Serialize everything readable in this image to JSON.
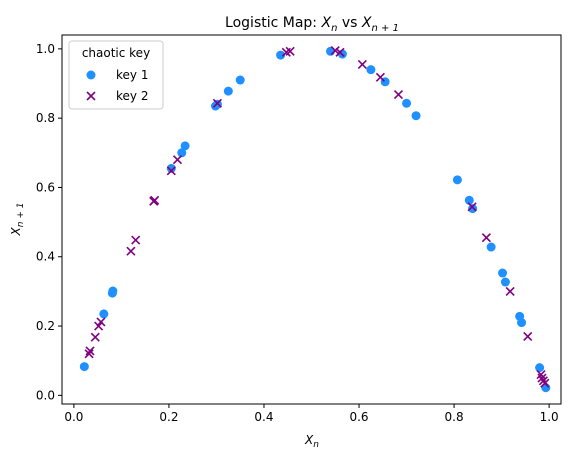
{
  "chart_data": {
    "type": "scatter",
    "title_main": "Logistic Map: ",
    "title_xn": "X",
    "title_xn_sub": "n",
    "title_vs": " vs ",
    "title_xn1": "X",
    "title_xn1_sub": "n + 1",
    "xlabel_base": "X",
    "xlabel_sub": "n",
    "ylabel_base": "X",
    "ylabel_sub": "n + 1",
    "xlim": [
      -0.025,
      1.025
    ],
    "ylim": [
      -0.025,
      1.04
    ],
    "x_ticks": [
      0.0,
      0.2,
      0.4,
      0.6,
      0.8,
      1.0
    ],
    "x_tick_labels": [
      "0.0",
      "0.2",
      "0.4",
      "0.6",
      "0.8",
      "1.0"
    ],
    "y_ticks": [
      0.0,
      0.2,
      0.4,
      0.6,
      0.8,
      1.0
    ],
    "y_tick_labels": [
      "0.0",
      "0.2",
      "0.4",
      "0.6",
      "0.8",
      "1.0"
    ],
    "grid": false,
    "legend": {
      "title": "chaotic key",
      "placement": "top-left"
    },
    "series": [
      {
        "name": "key 1",
        "marker": "circle",
        "color": "#1e90ff",
        "points": [
          [
            0.022,
            0.083
          ],
          [
            0.063,
            0.235
          ],
          [
            0.081,
            0.295
          ],
          [
            0.082,
            0.301
          ],
          [
            0.205,
            0.655
          ],
          [
            0.227,
            0.7
          ],
          [
            0.234,
            0.72
          ],
          [
            0.298,
            0.835
          ],
          [
            0.302,
            0.84
          ],
          [
            0.325,
            0.878
          ],
          [
            0.35,
            0.91
          ],
          [
            0.435,
            0.982
          ],
          [
            0.54,
            0.993
          ],
          [
            0.565,
            0.985
          ],
          [
            0.625,
            0.94
          ],
          [
            0.655,
            0.905
          ],
          [
            0.7,
            0.843
          ],
          [
            0.72,
            0.807
          ],
          [
            0.807,
            0.622
          ],
          [
            0.832,
            0.563
          ],
          [
            0.839,
            0.539
          ],
          [
            0.878,
            0.428
          ],
          [
            0.902,
            0.353
          ],
          [
            0.908,
            0.327
          ],
          [
            0.938,
            0.228
          ],
          [
            0.942,
            0.21
          ],
          [
            0.98,
            0.08
          ],
          [
            0.993,
            0.022
          ]
        ]
      },
      {
        "name": "key 2",
        "marker": "x",
        "color": "#800080",
        "points": [
          [
            0.032,
            0.12
          ],
          [
            0.034,
            0.128
          ],
          [
            0.045,
            0.168
          ],
          [
            0.052,
            0.2
          ],
          [
            0.057,
            0.212
          ],
          [
            0.12,
            0.416
          ],
          [
            0.13,
            0.448
          ],
          [
            0.168,
            0.56
          ],
          [
            0.17,
            0.563
          ],
          [
            0.205,
            0.648
          ],
          [
            0.218,
            0.68
          ],
          [
            0.302,
            0.843
          ],
          [
            0.447,
            0.99
          ],
          [
            0.455,
            0.993
          ],
          [
            0.55,
            0.995
          ],
          [
            0.56,
            0.99
          ],
          [
            0.607,
            0.955
          ],
          [
            0.645,
            0.918
          ],
          [
            0.683,
            0.868
          ],
          [
            0.838,
            0.544
          ],
          [
            0.868,
            0.455
          ],
          [
            0.918,
            0.3
          ],
          [
            0.955,
            0.17
          ],
          [
            0.983,
            0.06
          ],
          [
            0.985,
            0.05
          ],
          [
            0.988,
            0.042
          ],
          [
            0.991,
            0.035
          ]
        ]
      }
    ]
  }
}
